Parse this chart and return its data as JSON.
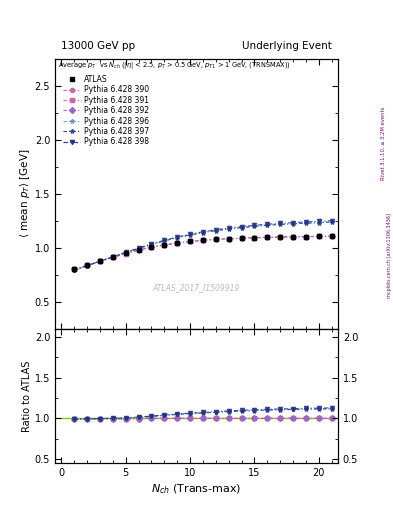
{
  "title_left": "13000 GeV pp",
  "title_right": "Underlying Event",
  "watermark": "ATLAS_2017_I1509919",
  "ylim_main": [
    0.25,
    2.75
  ],
  "ylim_ratio": [
    0.45,
    2.1
  ],
  "xlim": [
    -0.5,
    21.5
  ],
  "yticks_main": [
    0.5,
    1.0,
    1.5,
    2.0,
    2.5
  ],
  "yticks_ratio": [
    0.5,
    1.0,
    1.5,
    2.0
  ],
  "xticks": [
    0,
    5,
    10,
    15,
    20
  ],
  "atlas_x": [
    1,
    2,
    3,
    4,
    5,
    6,
    7,
    8,
    9,
    10,
    11,
    12,
    13,
    14,
    15,
    16,
    17,
    18,
    19,
    20,
    21
  ],
  "atlas_y": [
    0.8,
    0.838,
    0.875,
    0.915,
    0.95,
    0.98,
    1.005,
    1.025,
    1.042,
    1.057,
    1.068,
    1.076,
    1.082,
    1.087,
    1.092,
    1.095,
    1.098,
    1.1,
    1.102,
    1.104,
    1.106
  ],
  "p390_y": [
    0.798,
    0.836,
    0.872,
    0.91,
    0.945,
    0.978,
    1.005,
    1.025,
    1.042,
    1.057,
    1.068,
    1.076,
    1.082,
    1.087,
    1.092,
    1.095,
    1.098,
    1.1,
    1.102,
    1.104,
    1.106
  ],
  "p391_y": [
    0.798,
    0.836,
    0.872,
    0.91,
    0.945,
    0.978,
    1.005,
    1.025,
    1.042,
    1.057,
    1.068,
    1.076,
    1.082,
    1.087,
    1.092,
    1.095,
    1.098,
    1.1,
    1.102,
    1.104,
    1.106
  ],
  "p392_y": [
    0.799,
    0.837,
    0.873,
    0.912,
    0.947,
    0.979,
    1.006,
    1.026,
    1.043,
    1.058,
    1.069,
    1.077,
    1.083,
    1.088,
    1.093,
    1.096,
    1.099,
    1.101,
    1.103,
    1.105,
    1.107
  ],
  "p396_y": [
    0.79,
    0.833,
    0.873,
    0.915,
    0.954,
    0.993,
    1.03,
    1.063,
    1.093,
    1.118,
    1.14,
    1.158,
    1.173,
    1.186,
    1.197,
    1.207,
    1.215,
    1.221,
    1.227,
    1.232,
    1.237
  ],
  "p397_y": [
    0.79,
    0.833,
    0.873,
    0.915,
    0.954,
    0.993,
    1.03,
    1.063,
    1.093,
    1.118,
    1.14,
    1.158,
    1.173,
    1.186,
    1.197,
    1.207,
    1.215,
    1.221,
    1.227,
    1.232,
    1.237
  ],
  "p398_y": [
    0.79,
    0.833,
    0.874,
    0.917,
    0.957,
    0.997,
    1.035,
    1.068,
    1.099,
    1.125,
    1.147,
    1.166,
    1.182,
    1.195,
    1.207,
    1.217,
    1.225,
    1.232,
    1.238,
    1.244,
    1.249
  ],
  "colors": {
    "atlas": "#000000",
    "p390": "#d4649a",
    "p391": "#d4649a",
    "p392": "#9966cc",
    "p396": "#6699cc",
    "p397": "#334499",
    "p398": "#223388"
  },
  "markers": {
    "atlas": "s",
    "p390": "o",
    "p391": "s",
    "p392": "D",
    "p396": "*",
    "p397": "*",
    "p398": "v"
  }
}
